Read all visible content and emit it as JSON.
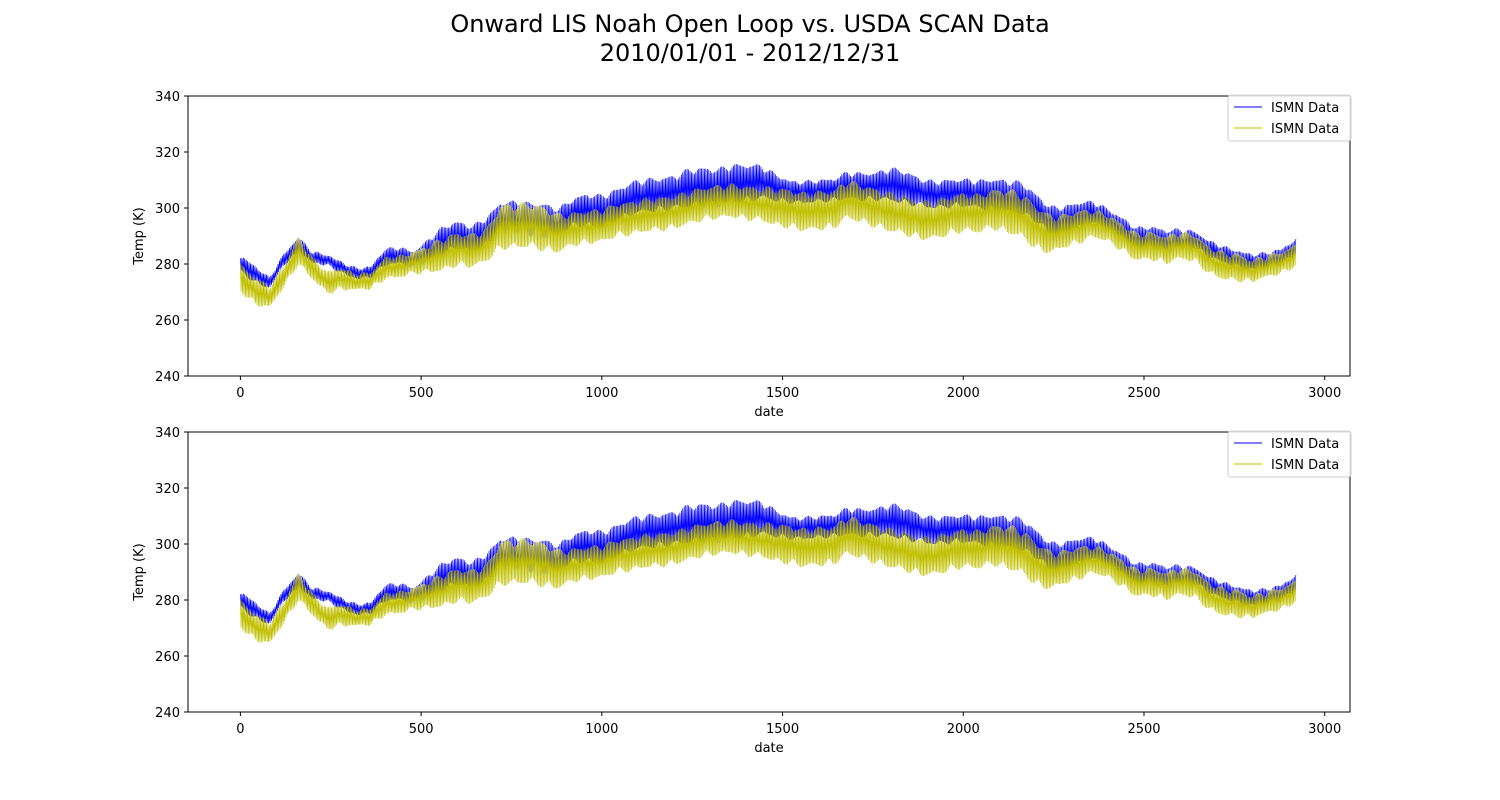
{
  "figure": {
    "title_line1": "Onward LIS Noah Open Loop vs. USDA SCAN Data",
    "title_line2": "2010/01/01 - 2012/12/31"
  },
  "colors": {
    "series_1": "#0000ff",
    "series_2": "#bfbf00",
    "axes": "#000000",
    "legend_border": "#cccccc"
  },
  "chart_data": [
    {
      "type": "line",
      "xlabel": "date",
      "ylabel": "Temp (K)",
      "xlim": [
        -145,
        3070
      ],
      "ylim": [
        240,
        340
      ],
      "xticks": [
        0,
        500,
        1000,
        1500,
        2000,
        2500,
        3000
      ],
      "yticks": [
        240,
        260,
        280,
        300,
        320,
        340
      ],
      "legend_position": "top-right",
      "grid": false,
      "series": [
        {
          "name": "ISMN Data",
          "color": "#0000ff",
          "x": [
            0,
            40,
            80,
            120,
            160,
            200,
            240,
            280,
            320,
            360,
            400,
            440,
            480,
            520,
            560,
            600,
            640,
            680,
            720,
            760,
            800,
            840,
            880,
            920,
            960,
            1000,
            1040,
            1080,
            1120,
            1160,
            1200,
            1240,
            1280,
            1320,
            1360,
            1400,
            1440,
            1480,
            1520,
            1560,
            1600,
            1640,
            1680,
            1720,
            1760,
            1800,
            1840,
            1880,
            1920,
            1960,
            2000,
            2040,
            2080,
            2120,
            2160,
            2200,
            2240,
            2280,
            2320,
            2360,
            2400,
            2440,
            2480,
            2520,
            2560,
            2600,
            2640,
            2680,
            2720,
            2760,
            2800,
            2840,
            2880,
            2920
          ],
          "center": [
            280,
            276,
            273,
            282,
            287,
            282,
            281,
            279,
            277,
            277,
            282,
            283,
            282,
            285,
            288,
            290,
            289,
            292,
            296,
            296,
            296,
            296,
            295,
            298,
            299,
            299,
            301,
            303,
            304,
            305,
            306,
            307,
            307,
            307,
            309,
            309,
            309,
            307,
            306,
            306,
            306,
            306,
            308,
            308,
            308,
            308,
            307,
            306,
            305,
            305,
            305,
            305,
            305,
            304,
            303,
            300,
            296,
            296,
            297,
            298,
            296,
            293,
            289,
            289,
            288,
            289,
            289,
            285,
            283,
            282,
            281,
            281,
            282,
            286
          ],
          "amplitude": [
            3,
            3,
            2,
            2,
            3,
            2,
            2,
            2,
            2,
            2,
            3,
            3,
            3,
            4,
            5,
            5,
            5,
            5,
            6,
            6,
            6,
            6,
            5,
            5,
            6,
            6,
            6,
            6,
            6,
            6,
            6,
            7,
            7,
            7,
            7,
            7,
            6,
            5,
            4,
            4,
            4,
            4,
            5,
            5,
            5,
            6,
            6,
            5,
            5,
            5,
            5,
            5,
            6,
            6,
            6,
            5,
            5,
            5,
            5,
            4,
            4,
            4,
            4,
            4,
            4,
            4,
            3,
            3,
            3,
            3,
            3,
            3,
            3,
            3
          ]
        },
        {
          "name": "ISMN Data",
          "color": "#bfbf00",
          "x": [
            0,
            40,
            80,
            120,
            160,
            200,
            240,
            280,
            320,
            360,
            400,
            440,
            480,
            520,
            560,
            600,
            640,
            680,
            720,
            760,
            800,
            840,
            880,
            920,
            960,
            1000,
            1040,
            1080,
            1120,
            1160,
            1200,
            1240,
            1280,
            1320,
            1360,
            1400,
            1440,
            1480,
            1520,
            1560,
            1600,
            1640,
            1680,
            1720,
            1760,
            1800,
            1840,
            1880,
            1920,
            1960,
            2000,
            2040,
            2080,
            2120,
            2160,
            2200,
            2240,
            2280,
            2320,
            2360,
            2400,
            2440,
            2480,
            2520,
            2560,
            2600,
            2640,
            2680,
            2720,
            2760,
            2800,
            2840,
            2880,
            2920
          ],
          "center": [
            275,
            270,
            268,
            276,
            285,
            278,
            273,
            275,
            274,
            274,
            278,
            279,
            281,
            282,
            283,
            285,
            285,
            287,
            293,
            293,
            294,
            293,
            291,
            292,
            293,
            294,
            296,
            296,
            297,
            298,
            299,
            300,
            301,
            302,
            303,
            302,
            301,
            300,
            300,
            299,
            299,
            299,
            303,
            302,
            300,
            298,
            297,
            296,
            296,
            297,
            298,
            298,
            300,
            299,
            297,
            293,
            291,
            292,
            293,
            294,
            293,
            290,
            286,
            286,
            285,
            287,
            286,
            281,
            279,
            279,
            278,
            279,
            280,
            283
          ],
          "amplitude": [
            5,
            5,
            4,
            4,
            5,
            4,
            4,
            4,
            3,
            3,
            4,
            4,
            4,
            5,
            6,
            6,
            6,
            6,
            8,
            8,
            8,
            8,
            7,
            6,
            6,
            6,
            6,
            6,
            6,
            6,
            6,
            6,
            6,
            6,
            6,
            6,
            6,
            7,
            7,
            7,
            7,
            7,
            7,
            7,
            7,
            7,
            7,
            7,
            7,
            7,
            7,
            7,
            7,
            8,
            8,
            8,
            7,
            6,
            6,
            5,
            5,
            5,
            5,
            5,
            5,
            5,
            5,
            5,
            5,
            5,
            4,
            4,
            4,
            4
          ]
        }
      ]
    },
    {
      "type": "line",
      "xlabel": "date",
      "ylabel": "Temp (K)",
      "xlim": [
        -145,
        3070
      ],
      "ylim": [
        240,
        340
      ],
      "xticks": [
        0,
        500,
        1000,
        1500,
        2000,
        2500,
        3000
      ],
      "yticks": [
        240,
        260,
        280,
        300,
        320,
        340
      ],
      "legend_position": "top-right",
      "grid": false,
      "series": [
        {
          "name": "ISMN Data",
          "color": "#0000ff",
          "x": [
            0,
            40,
            80,
            120,
            160,
            200,
            240,
            280,
            320,
            360,
            400,
            440,
            480,
            520,
            560,
            600,
            640,
            680,
            720,
            760,
            800,
            840,
            880,
            920,
            960,
            1000,
            1040,
            1080,
            1120,
            1160,
            1200,
            1240,
            1280,
            1320,
            1360,
            1400,
            1440,
            1480,
            1520,
            1560,
            1600,
            1640,
            1680,
            1720,
            1760,
            1800,
            1840,
            1880,
            1920,
            1960,
            2000,
            2040,
            2080,
            2120,
            2160,
            2200,
            2240,
            2280,
            2320,
            2360,
            2400,
            2440,
            2480,
            2520,
            2560,
            2600,
            2640,
            2680,
            2720,
            2760,
            2800,
            2840,
            2880,
            2920
          ],
          "center": [
            280,
            276,
            273,
            282,
            287,
            282,
            281,
            279,
            277,
            277,
            282,
            283,
            282,
            285,
            288,
            290,
            289,
            292,
            296,
            296,
            296,
            296,
            295,
            298,
            299,
            299,
            301,
            303,
            304,
            305,
            306,
            307,
            307,
            307,
            309,
            309,
            309,
            307,
            306,
            306,
            306,
            306,
            308,
            308,
            308,
            308,
            307,
            306,
            305,
            305,
            305,
            305,
            305,
            304,
            303,
            300,
            296,
            296,
            297,
            298,
            296,
            293,
            289,
            289,
            288,
            289,
            289,
            285,
            283,
            282,
            281,
            281,
            282,
            286
          ],
          "amplitude": [
            3,
            3,
            2,
            2,
            3,
            2,
            2,
            2,
            2,
            2,
            3,
            3,
            3,
            4,
            5,
            5,
            5,
            5,
            6,
            6,
            6,
            6,
            5,
            5,
            6,
            6,
            6,
            6,
            6,
            6,
            6,
            7,
            7,
            7,
            7,
            7,
            6,
            5,
            4,
            4,
            4,
            4,
            5,
            5,
            5,
            6,
            6,
            5,
            5,
            5,
            5,
            5,
            6,
            6,
            6,
            5,
            5,
            5,
            5,
            4,
            4,
            4,
            4,
            4,
            4,
            4,
            3,
            3,
            3,
            3,
            3,
            3,
            3,
            3
          ]
        },
        {
          "name": "ISMN Data",
          "color": "#bfbf00",
          "x": [
            0,
            40,
            80,
            120,
            160,
            200,
            240,
            280,
            320,
            360,
            400,
            440,
            480,
            520,
            560,
            600,
            640,
            680,
            720,
            760,
            800,
            840,
            880,
            920,
            960,
            1000,
            1040,
            1080,
            1120,
            1160,
            1200,
            1240,
            1280,
            1320,
            1360,
            1400,
            1440,
            1480,
            1520,
            1560,
            1600,
            1640,
            1680,
            1720,
            1760,
            1800,
            1840,
            1880,
            1920,
            1960,
            2000,
            2040,
            2080,
            2120,
            2160,
            2200,
            2240,
            2280,
            2320,
            2360,
            2400,
            2440,
            2480,
            2520,
            2560,
            2600,
            2640,
            2680,
            2720,
            2760,
            2800,
            2840,
            2880,
            2920
          ],
          "center": [
            275,
            270,
            268,
            276,
            285,
            278,
            273,
            275,
            274,
            274,
            278,
            279,
            281,
            282,
            283,
            285,
            285,
            287,
            293,
            293,
            294,
            293,
            291,
            292,
            293,
            294,
            296,
            296,
            297,
            298,
            299,
            300,
            301,
            302,
            303,
            302,
            301,
            300,
            300,
            299,
            299,
            299,
            303,
            302,
            300,
            298,
            297,
            296,
            296,
            297,
            298,
            298,
            300,
            299,
            297,
            293,
            291,
            292,
            293,
            294,
            293,
            290,
            286,
            286,
            285,
            287,
            286,
            281,
            279,
            279,
            278,
            279,
            280,
            283
          ],
          "amplitude": [
            5,
            5,
            4,
            4,
            5,
            4,
            4,
            4,
            3,
            3,
            4,
            4,
            4,
            5,
            6,
            6,
            6,
            6,
            8,
            8,
            8,
            8,
            7,
            6,
            6,
            6,
            6,
            6,
            6,
            6,
            6,
            6,
            6,
            6,
            6,
            6,
            6,
            7,
            7,
            7,
            7,
            7,
            7,
            7,
            7,
            7,
            7,
            7,
            7,
            7,
            7,
            7,
            7,
            8,
            8,
            8,
            7,
            6,
            6,
            5,
            5,
            5,
            5,
            5,
            5,
            5,
            5,
            5,
            5,
            5,
            4,
            4,
            4,
            4
          ]
        }
      ]
    }
  ]
}
